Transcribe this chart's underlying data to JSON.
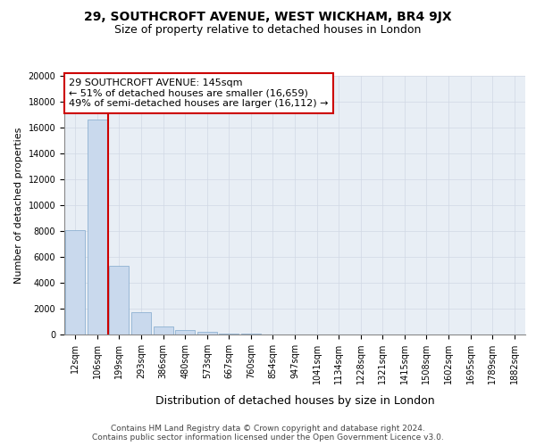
{
  "title1": "29, SOUTHCROFT AVENUE, WEST WICKHAM, BR4 9JX",
  "title2": "Size of property relative to detached houses in London",
  "xlabel": "Distribution of detached houses by size in London",
  "ylabel": "Number of detached properties",
  "property_label": "29 SOUTHCROFT AVENUE: 145sqm",
  "annotation_line1": "← 51% of detached houses are smaller (16,659)",
  "annotation_line2": "49% of semi-detached houses are larger (16,112) →",
  "footer1": "Contains HM Land Registry data © Crown copyright and database right 2024.",
  "footer2": "Contains public sector information licensed under the Open Government Licence v3.0.",
  "bar_color": "#c9d9ed",
  "bar_edge_color": "#7fa8cc",
  "vline_color": "#cc0000",
  "annotation_box_color": "#cc0000",
  "background_color": "#ffffff",
  "axes_facecolor": "#e8eef5",
  "grid_color": "#d0d8e4",
  "categories": [
    "12sqm",
    "106sqm",
    "199sqm",
    "293sqm",
    "386sqm",
    "480sqm",
    "573sqm",
    "667sqm",
    "760sqm",
    "854sqm",
    "947sqm",
    "1041sqm",
    "1134sqm",
    "1228sqm",
    "1321sqm",
    "1415sqm",
    "1508sqm",
    "1602sqm",
    "1695sqm",
    "1789sqm",
    "1882sqm"
  ],
  "values": [
    8100,
    16600,
    5300,
    1750,
    600,
    350,
    180,
    80,
    50,
    30,
    20,
    12,
    8,
    6,
    5,
    4,
    3,
    3,
    2,
    2,
    1
  ],
  "ylim": [
    0,
    20000
  ],
  "yticks": [
    0,
    2000,
    4000,
    6000,
    8000,
    10000,
    12000,
    14000,
    16000,
    18000,
    20000
  ],
  "vline_position": 1.5,
  "title1_fontsize": 10,
  "title2_fontsize": 9,
  "xlabel_fontsize": 9,
  "ylabel_fontsize": 8,
  "tick_fontsize": 7,
  "annotation_fontsize": 8,
  "footer_fontsize": 6.5
}
